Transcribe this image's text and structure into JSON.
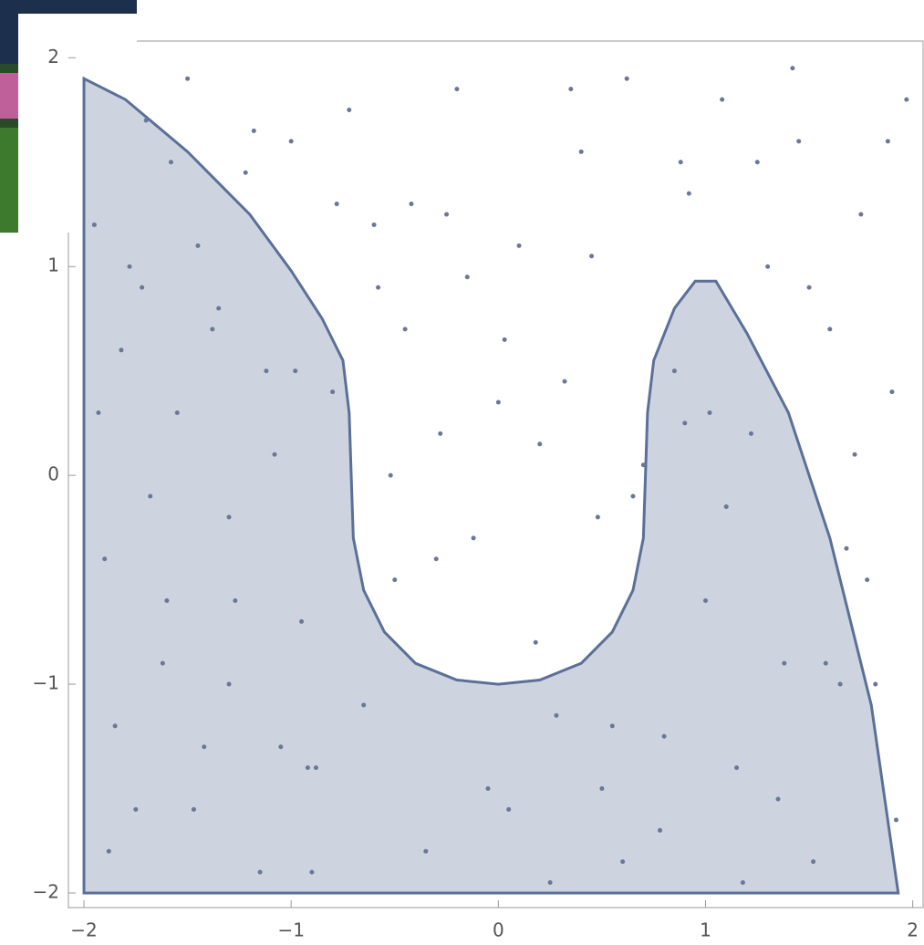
{
  "chart_data": {
    "type": "scatter",
    "xlim": [
      -2.075,
      2.05
    ],
    "ylim": [
      -2.07,
      2.08
    ],
    "xticks": [
      {
        "value": -2,
        "label": "−2"
      },
      {
        "value": -1,
        "label": "−1"
      },
      0,
      1,
      2
    ],
    "yticks": [
      {
        "value": -2,
        "label": "−2"
      },
      {
        "value": -1,
        "label": "−1"
      },
      0,
      1,
      2
    ],
    "region": {
      "color": "#5b6f98",
      "x": [
        -2,
        -2,
        -1.8,
        -1.5,
        -1.2,
        -1,
        -0.85,
        -0.75,
        -0.72,
        -0.71,
        -0.7,
        -0.65,
        -0.55,
        -0.4,
        -0.2,
        0,
        0.2,
        0.4,
        0.55,
        0.65,
        0.7,
        0.71,
        0.72,
        0.75,
        0.85,
        0.95,
        1.05,
        1.2,
        1.4,
        1.6,
        1.8,
        1.93
      ],
      "y": [
        -2,
        1.9,
        1.8,
        1.55,
        1.25,
        0.98,
        0.75,
        0.55,
        0.3,
        0,
        -0.3,
        -0.55,
        -0.75,
        -0.9,
        -0.98,
        -1,
        -0.98,
        -0.9,
        -0.75,
        -0.55,
        -0.3,
        0,
        0.3,
        0.55,
        0.8,
        0.93,
        0.93,
        0.68,
        0.3,
        -0.3,
        -1.1,
        -2
      ]
    },
    "series": [
      {
        "color": "#6a7797",
        "x": [
          -1.95,
          -1.9,
          -1.82,
          -1.75,
          -1.7,
          -1.62,
          -1.55,
          -1.5,
          -1.42,
          -1.35,
          -1.3,
          -1.22,
          -1.15,
          -1.08,
          -1.0,
          -0.95,
          -0.88,
          -0.8,
          -0.72,
          -0.65,
          -0.58,
          -0.5,
          -0.42,
          -0.35,
          -0.28,
          -0.2,
          -0.12,
          -0.05,
          0.03,
          0.1,
          0.18,
          0.25,
          0.32,
          0.4,
          0.48,
          0.55,
          0.62,
          0.7,
          0.78,
          0.85,
          0.92,
          1.0,
          1.08,
          1.15,
          1.22,
          1.3,
          1.38,
          1.45,
          1.52,
          1.6,
          1.68,
          1.75,
          1.82,
          1.9,
          1.97,
          -1.93,
          -1.85,
          -1.78,
          -1.68,
          -1.58,
          -1.47,
          -1.38,
          -1.27,
          -1.18,
          -1.05,
          -0.98,
          -0.9,
          -0.6,
          -0.45,
          -0.3,
          -0.15,
          0.05,
          0.2,
          0.35,
          0.5,
          0.65,
          0.8,
          0.9,
          1.1,
          1.25,
          1.35,
          1.5,
          1.65,
          1.78,
          1.88,
          -1.88,
          -1.72,
          -1.6,
          -1.45,
          -1.3,
          -1.12,
          -0.92,
          -0.78,
          -0.52,
          -0.25,
          0.0,
          0.28,
          0.45,
          0.6,
          0.88,
          1.02,
          1.18,
          1.42,
          1.58,
          1.72,
          1.92
        ],
        "y": [
          1.2,
          -0.4,
          0.6,
          -1.6,
          1.7,
          -0.9,
          0.3,
          1.9,
          -1.3,
          0.8,
          -0.2,
          1.45,
          -1.9,
          0.1,
          1.6,
          -0.7,
          -1.4,
          0.4,
          1.75,
          -1.1,
          0.9,
          -0.5,
          1.3,
          -1.8,
          0.2,
          1.85,
          -0.3,
          -1.5,
          0.65,
          1.1,
          -0.8,
          -1.95,
          0.45,
          1.55,
          -0.2,
          -1.2,
          1.9,
          0.05,
          -1.7,
          0.5,
          1.35,
          -0.6,
          1.8,
          -1.4,
          0.2,
          1.0,
          -0.9,
          1.6,
          -1.85,
          0.7,
          -0.35,
          1.25,
          -1.0,
          0.4,
          1.8,
          0.3,
          -1.2,
          1.0,
          -0.1,
          1.5,
          -1.6,
          0.7,
          -0.6,
          1.65,
          -1.3,
          0.5,
          -1.9,
          1.2,
          0.7,
          -0.4,
          0.95,
          -1.6,
          0.15,
          1.85,
          -1.5,
          -0.1,
          -1.25,
          0.25,
          -0.15,
          1.5,
          -1.55,
          0.9,
          -1.0,
          -0.5,
          1.6,
          -1.8,
          0.9,
          -0.6,
          1.1,
          -1.0,
          0.5,
          -1.4,
          1.3,
          0.0,
          1.25,
          0.35,
          -1.15,
          1.05,
          -1.85,
          1.5,
          0.3,
          -1.95,
          1.95,
          -0.9,
          0.1,
          -1.65
        ]
      }
    ]
  }
}
